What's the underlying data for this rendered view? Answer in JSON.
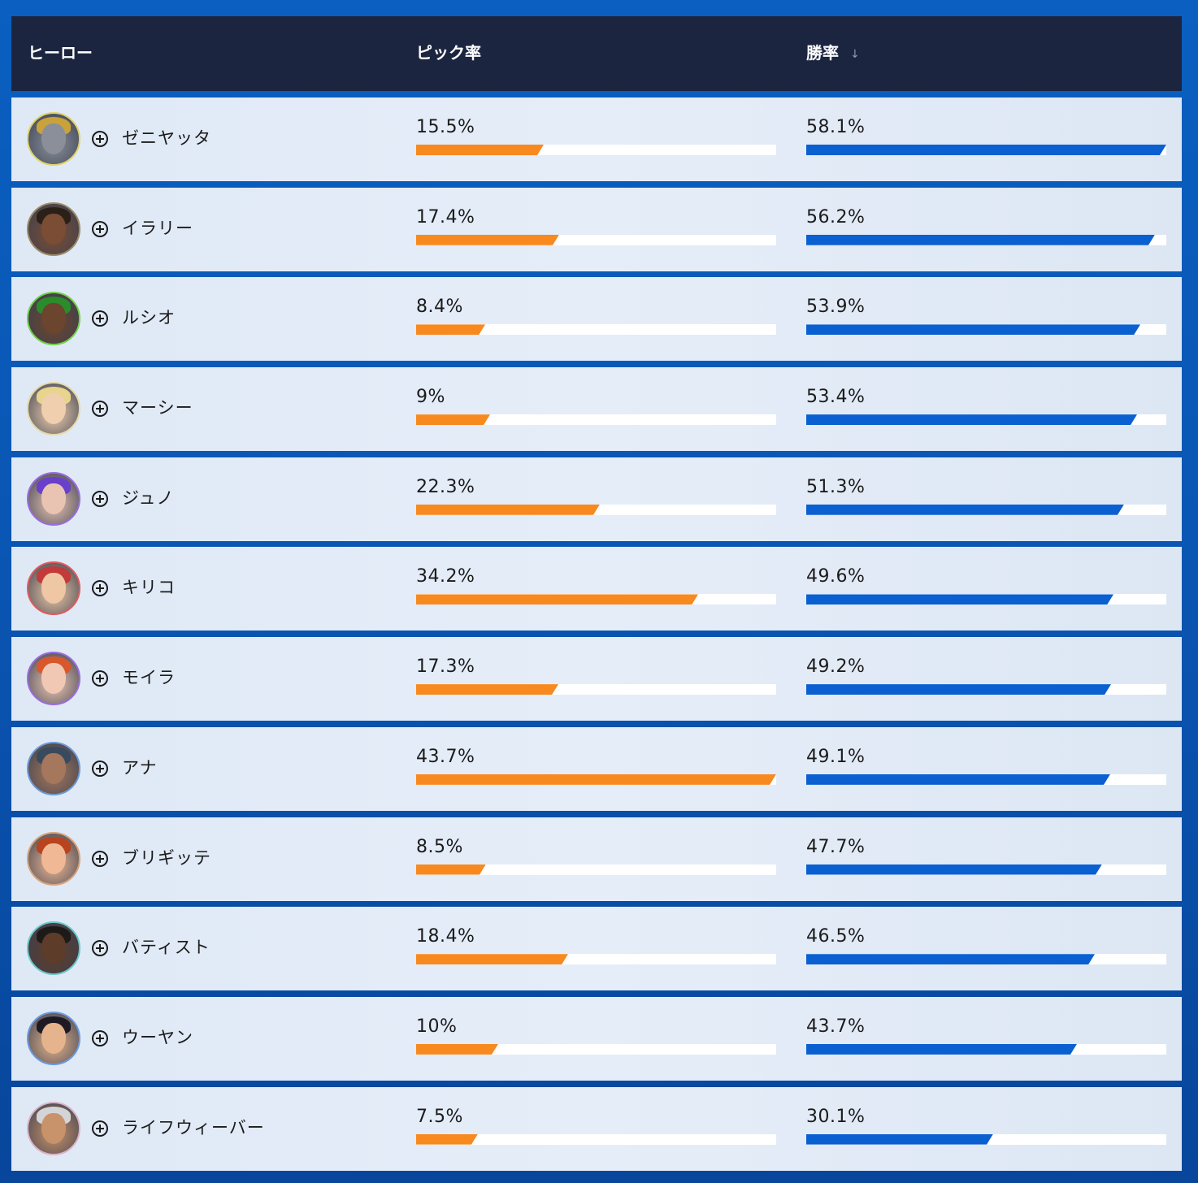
{
  "header": {
    "hero_label": "ヒーロー",
    "pick_label": "ピック率",
    "win_label": "勝率",
    "sort_icon": "arrow-down-icon"
  },
  "colors": {
    "pick_bar": "#f7891f",
    "win_bar": "#0a5fd1",
    "header_bg": "#1b2540"
  },
  "role_icon": "support-plus-icon",
  "rows": [
    {
      "name": "ゼニヤッタ",
      "pick": "15.5%",
      "win": "58.1%",
      "pick_value": 15.5,
      "win_value": 58.1,
      "avatar_ring": "#e0d36a",
      "skin": "#8a8f9a",
      "hair": "#c9a33a"
    },
    {
      "name": "イラリー",
      "pick": "17.4%",
      "win": "56.2%",
      "pick_value": 17.4,
      "win_value": 56.2,
      "avatar_ring": "#9a8a6a",
      "skin": "#7a4d34",
      "hair": "#2b2018"
    },
    {
      "name": "ルシオ",
      "pick": "8.4%",
      "win": "53.9%",
      "pick_value": 8.4,
      "win_value": 53.9,
      "avatar_ring": "#6fd24a",
      "skin": "#6b452e",
      "hair": "#2a8c2a"
    },
    {
      "name": "マーシー",
      "pick": "9%",
      "win": "53.4%",
      "pick_value": 9,
      "win_value": 53.4,
      "avatar_ring": "#e6d9a8",
      "skin": "#f0cfae",
      "hair": "#e8d48c"
    },
    {
      "name": "ジュノ",
      "pick": "22.3%",
      "win": "51.3%",
      "pick_value": 22.3,
      "win_value": 51.3,
      "avatar_ring": "#9a6be0",
      "skin": "#e9c4b3",
      "hair": "#6a3fc9"
    },
    {
      "name": "キリコ",
      "pick": "34.2%",
      "win": "49.6%",
      "pick_value": 34.2,
      "win_value": 49.6,
      "avatar_ring": "#e05a5a",
      "skin": "#efc7a5",
      "hair": "#c23a3a"
    },
    {
      "name": "モイラ",
      "pick": "17.3%",
      "win": "49.2%",
      "pick_value": 17.3,
      "win_value": 49.2,
      "avatar_ring": "#9a6be0",
      "skin": "#f0c8b4",
      "hair": "#d8572c"
    },
    {
      "name": "アナ",
      "pick": "43.7%",
      "win": "49.1%",
      "pick_value": 43.7,
      "win_value": 49.1,
      "avatar_ring": "#6a9ad8",
      "skin": "#a5775c",
      "hair": "#3a4a5e"
    },
    {
      "name": "ブリギッテ",
      "pick": "8.5%",
      "win": "47.7%",
      "pick_value": 8.5,
      "win_value": 47.7,
      "avatar_ring": "#d8a37a",
      "skin": "#f0b894",
      "hair": "#b8431e"
    },
    {
      "name": "バティスト",
      "pick": "18.4%",
      "win": "46.5%",
      "pick_value": 18.4,
      "win_value": 46.5,
      "avatar_ring": "#6ac8c8",
      "skin": "#5e3c2a",
      "hair": "#1e1a18"
    },
    {
      "name": "ウーヤン",
      "pick": "10%",
      "win": "43.7%",
      "pick_value": 10,
      "win_value": 43.7,
      "avatar_ring": "#6a9ae0",
      "skin": "#e6b48c",
      "hair": "#1e1a24"
    },
    {
      "name": "ライフウィーバー",
      "pick": "7.5%",
      "win": "30.1%",
      "pick_value": 7.5,
      "win_value": 30.1,
      "avatar_ring": "#d8b4c8",
      "skin": "#c8926a",
      "hair": "#d4d4d8"
    }
  ]
}
